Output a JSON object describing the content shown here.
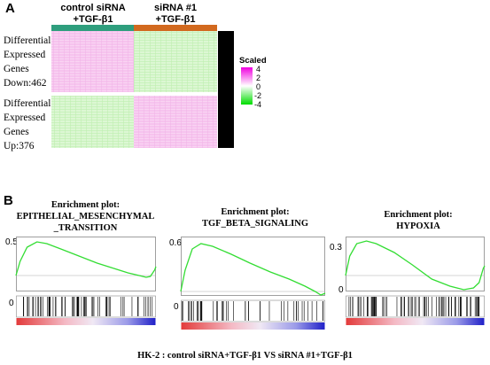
{
  "panel_a": {
    "label": "A",
    "col_headers": [
      {
        "line1": "control siRNA",
        "line2": "+TGF-β1",
        "bar_color": "#2e9e7d"
      },
      {
        "line1": "siRNA #1",
        "line2": "+TGF-β1",
        "bar_color": "#d2691e"
      }
    ],
    "row_groups": [
      {
        "lines": [
          "Differential",
          "Expressed",
          "Genes",
          "Down:462"
        ],
        "left": "pink",
        "right": "green"
      },
      {
        "lines": [
          "Differential",
          "Expressed",
          "Genes",
          "Up:376"
        ],
        "left": "green",
        "right": "pink"
      }
    ],
    "legend": {
      "title": "Scaled",
      "ticks": [
        "4",
        "2",
        "0",
        "-2",
        "-4"
      ],
      "colors": [
        "#f000e0",
        "#ffffff",
        "#00dd00"
      ]
    }
  },
  "panel_b": {
    "label": "B",
    "plots": [
      {
        "title_lines": [
          "Enrichment plot:",
          "EPITHELIAL_MESENCHYMAL",
          "_TRANSITION"
        ],
        "y_top": "0.5",
        "y_zero": "0"
      },
      {
        "title_lines": [
          "Enrichment plot:",
          "TGF_BETA_SIGNALING"
        ],
        "y_top": "0.6",
        "y_zero": "0"
      },
      {
        "title_lines": [
          "Enrichment plot:",
          "HYPOXIA"
        ],
        "y_top": "0.3",
        "y_zero": "0"
      }
    ],
    "caption": "HK-2 : control siRNA+TGF-β1 VS siRNA #1+TGF-β1",
    "curve_color": "#33dd33"
  }
}
